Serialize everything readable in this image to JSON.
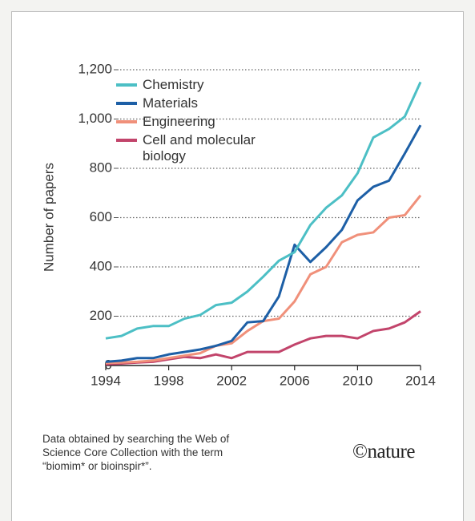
{
  "chart_data": {
    "type": "line",
    "y_label": "Number of papers",
    "x": [
      1994,
      1995,
      1996,
      1997,
      1998,
      1999,
      2000,
      2001,
      2002,
      2003,
      2004,
      2005,
      2006,
      2007,
      2008,
      2009,
      2010,
      2011,
      2012,
      2013,
      2014
    ],
    "series": [
      {
        "name": "Chemistry",
        "color": "#4cbfc5",
        "values": [
          110,
          120,
          150,
          160,
          160,
          190,
          205,
          245,
          255,
          300,
          360,
          425,
          460,
          570,
          640,
          690,
          780,
          925,
          960,
          1010,
          1150
        ]
      },
      {
        "name": "Materials",
        "color": "#1d5fa6",
        "values": [
          15,
          20,
          30,
          30,
          45,
          55,
          65,
          80,
          100,
          175,
          180,
          280,
          490,
          420,
          480,
          550,
          670,
          725,
          750,
          860,
          975
        ]
      },
      {
        "name": "Engineering",
        "color": "#f0907a",
        "values": [
          10,
          12,
          15,
          20,
          30,
          40,
          50,
          80,
          90,
          140,
          180,
          190,
          260,
          370,
          400,
          500,
          530,
          540,
          600,
          610,
          690
        ]
      },
      {
        "name": "Cell and molecular biology",
        "color": "#c2446b",
        "values": [
          5,
          8,
          12,
          15,
          25,
          35,
          30,
          45,
          30,
          55,
          55,
          55,
          85,
          110,
          120,
          120,
          110,
          140,
          150,
          175,
          220
        ]
      }
    ],
    "xlim": [
      1994,
      2014
    ],
    "xticks": [
      1994,
      1998,
      2002,
      2006,
      2010,
      2014
    ],
    "ylim": [
      0,
      1200
    ],
    "yticks": [
      0,
      200,
      400,
      600,
      800,
      {
        "value": 1000,
        "label": "1,000"
      },
      {
        "value": 1200,
        "label": "1,200"
      }
    ],
    "grid": true,
    "legend": "upper-left",
    "caption": "Data obtained by searching the Web of Science Core Collection with the term “biomim* or bioinspir*”.",
    "logo": "©nature"
  }
}
